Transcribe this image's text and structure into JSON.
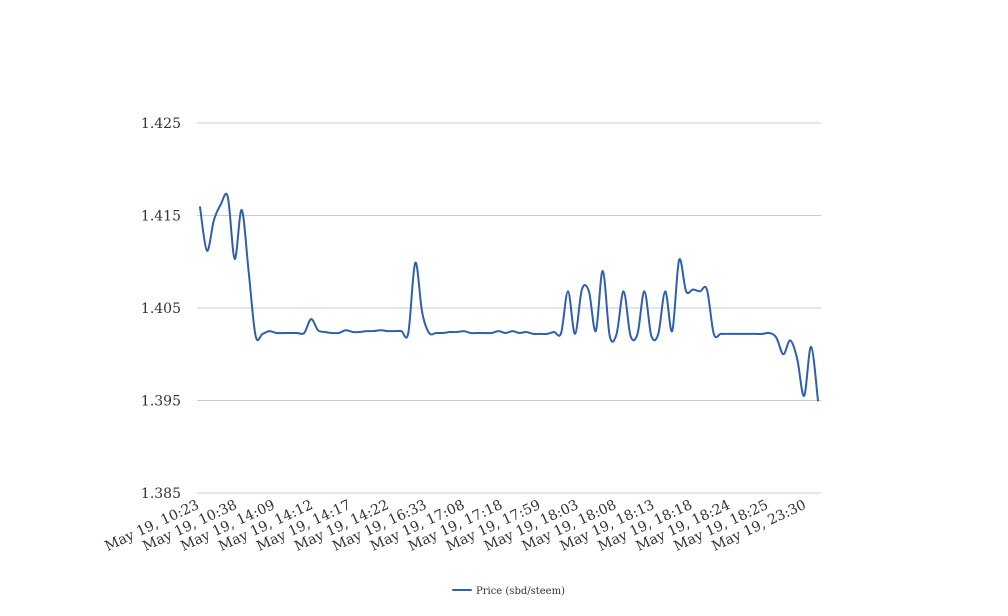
{
  "chart_data": {
    "type": "line",
    "title": "",
    "xlabel": "",
    "ylabel": "",
    "ylim": [
      1.385,
      1.425
    ],
    "y_ticks": [
      "1.385",
      "1.395",
      "1.405",
      "1.415",
      "1.425"
    ],
    "x_tick_labels": [
      "May 19, 10:23",
      "May 19, 10:38",
      "May 19, 14:09",
      "May 19, 14:12",
      "May 19, 14:17",
      "May 19, 14:22",
      "May 19, 16:33",
      "May 19, 17:08",
      "May 19, 17:18",
      "May 19, 17:59",
      "May 19, 18:03",
      "May 19, 18:08",
      "May 19, 18:13",
      "May 19, 18:18",
      "May 19, 18:24",
      "May 19, 18:25",
      "May 19, 23:30"
    ],
    "grid": true,
    "legend_position": "bottom",
    "series": [
      {
        "name": "Price (sbd/steem)",
        "color": "#2f5fad",
        "values": [
          1.4159,
          1.4112,
          1.4145,
          1.4162,
          1.417,
          1.4103,
          1.4156,
          1.409,
          1.402,
          1.4022,
          1.4025,
          1.4023,
          1.4023,
          1.4023,
          1.4023,
          1.4023,
          1.4038,
          1.4026,
          1.4024,
          1.4023,
          1.4023,
          1.4026,
          1.4024,
          1.4024,
          1.4025,
          1.4025,
          1.4026,
          1.4025,
          1.4025,
          1.4025,
          1.4023,
          1.4099,
          1.4045,
          1.4023,
          1.4023,
          1.4023,
          1.4024,
          1.4024,
          1.4025,
          1.4023,
          1.4023,
          1.4023,
          1.4023,
          1.4025,
          1.4023,
          1.4025,
          1.4023,
          1.4024,
          1.4022,
          1.4022,
          1.4022,
          1.4024,
          1.4023,
          1.4068,
          1.4022,
          1.407,
          1.4068,
          1.4025,
          1.409,
          1.402,
          1.4022,
          1.4068,
          1.402,
          1.4022,
          1.4068,
          1.402,
          1.4022,
          1.4068,
          1.4025,
          1.4102,
          1.4068,
          1.407,
          1.4068,
          1.407,
          1.4022,
          1.4022,
          1.4022,
          1.4022,
          1.4022,
          1.4022,
          1.4022,
          1.4022,
          1.4023,
          1.4018,
          1.4,
          1.4015,
          1.3995,
          1.3955,
          1.4008,
          1.395
        ]
      }
    ]
  }
}
